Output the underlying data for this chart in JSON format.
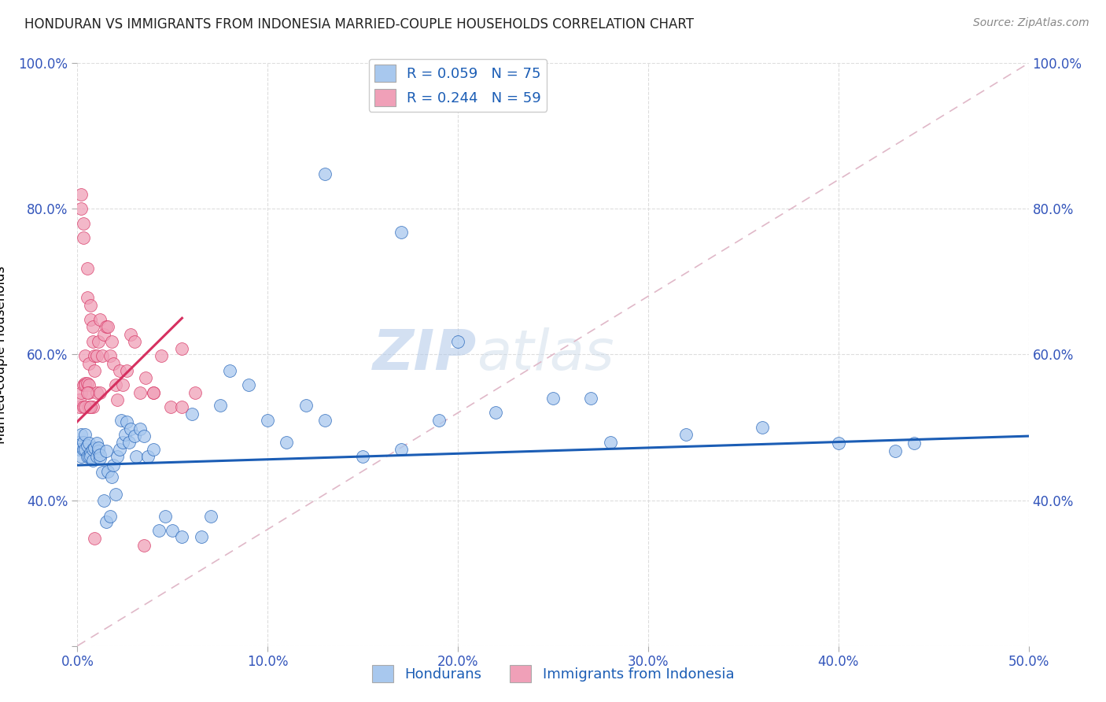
{
  "title": "HONDURAN VS IMMIGRANTS FROM INDONESIA MARRIED-COUPLE HOUSEHOLDS CORRELATION CHART",
  "source": "Source: ZipAtlas.com",
  "ylabel_label": "Married-couple Households",
  "xlim": [
    0.0,
    0.5
  ],
  "ylim": [
    0.2,
    1.0
  ],
  "legend_r1": "R = 0.059",
  "legend_n1": "N = 75",
  "legend_r2": "R = 0.244",
  "legend_n2": "N = 59",
  "color_blue": "#A8C8EE",
  "color_pink": "#F0A0B8",
  "line_blue": "#1B5DB5",
  "line_pink": "#D63060",
  "watermark_zip": "ZIP",
  "watermark_atlas": "atlas",
  "blue_x": [
    0.001,
    0.001,
    0.002,
    0.002,
    0.003,
    0.003,
    0.004,
    0.004,
    0.005,
    0.005,
    0.006,
    0.006,
    0.007,
    0.007,
    0.008,
    0.008,
    0.009,
    0.01,
    0.01,
    0.011,
    0.011,
    0.012,
    0.012,
    0.013,
    0.014,
    0.015,
    0.015,
    0.016,
    0.017,
    0.018,
    0.019,
    0.02,
    0.021,
    0.022,
    0.023,
    0.024,
    0.025,
    0.026,
    0.027,
    0.028,
    0.03,
    0.031,
    0.033,
    0.035,
    0.037,
    0.04,
    0.043,
    0.046,
    0.05,
    0.055,
    0.06,
    0.065,
    0.07,
    0.075,
    0.08,
    0.09,
    0.1,
    0.11,
    0.12,
    0.13,
    0.15,
    0.17,
    0.19,
    0.22,
    0.25,
    0.28,
    0.32,
    0.36,
    0.4,
    0.43,
    0.13,
    0.17,
    0.2,
    0.27,
    0.44
  ],
  "blue_y": [
    0.48,
    0.47,
    0.49,
    0.46,
    0.47,
    0.48,
    0.47,
    0.49,
    0.46,
    0.475,
    0.46,
    0.478,
    0.465,
    0.46,
    0.455,
    0.47,
    0.472,
    0.46,
    0.478,
    0.468,
    0.472,
    0.458,
    0.462,
    0.438,
    0.4,
    0.37,
    0.468,
    0.44,
    0.378,
    0.432,
    0.448,
    0.408,
    0.46,
    0.47,
    0.51,
    0.48,
    0.49,
    0.508,
    0.48,
    0.498,
    0.488,
    0.46,
    0.498,
    0.488,
    0.46,
    0.47,
    0.358,
    0.378,
    0.358,
    0.35,
    0.518,
    0.35,
    0.378,
    0.53,
    0.578,
    0.558,
    0.51,
    0.48,
    0.53,
    0.51,
    0.46,
    0.47,
    0.51,
    0.52,
    0.54,
    0.48,
    0.49,
    0.5,
    0.478,
    0.468,
    0.848,
    0.768,
    0.618,
    0.54,
    0.478
  ],
  "pink_x": [
    0.001,
    0.001,
    0.002,
    0.002,
    0.002,
    0.003,
    0.003,
    0.003,
    0.004,
    0.004,
    0.004,
    0.005,
    0.005,
    0.005,
    0.006,
    0.006,
    0.006,
    0.007,
    0.007,
    0.008,
    0.008,
    0.009,
    0.009,
    0.01,
    0.01,
    0.011,
    0.012,
    0.013,
    0.014,
    0.015,
    0.016,
    0.017,
    0.018,
    0.019,
    0.02,
    0.021,
    0.022,
    0.024,
    0.026,
    0.028,
    0.03,
    0.033,
    0.036,
    0.04,
    0.044,
    0.049,
    0.055,
    0.062,
    0.04,
    0.055,
    0.012,
    0.008,
    0.003,
    0.006,
    0.004,
    0.005,
    0.007,
    0.009,
    0.035
  ],
  "pink_y": [
    0.528,
    0.538,
    0.8,
    0.82,
    0.548,
    0.76,
    0.78,
    0.558,
    0.56,
    0.598,
    0.558,
    0.678,
    0.718,
    0.56,
    0.558,
    0.588,
    0.548,
    0.668,
    0.648,
    0.618,
    0.638,
    0.598,
    0.578,
    0.598,
    0.548,
    0.618,
    0.648,
    0.598,
    0.628,
    0.638,
    0.638,
    0.598,
    0.618,
    0.588,
    0.558,
    0.538,
    0.578,
    0.558,
    0.578,
    0.628,
    0.618,
    0.548,
    0.568,
    0.548,
    0.598,
    0.528,
    0.608,
    0.548,
    0.548,
    0.528,
    0.548,
    0.528,
    0.528,
    0.528,
    0.528,
    0.548,
    0.528,
    0.348,
    0.338
  ],
  "blue_line_x0": 0.0,
  "blue_line_y0": 0.448,
  "blue_line_x1": 0.5,
  "blue_line_y1": 0.488,
  "pink_line_x0": 0.0,
  "pink_line_y0": 0.508,
  "pink_line_x1": 0.055,
  "pink_line_y1": 0.65
}
